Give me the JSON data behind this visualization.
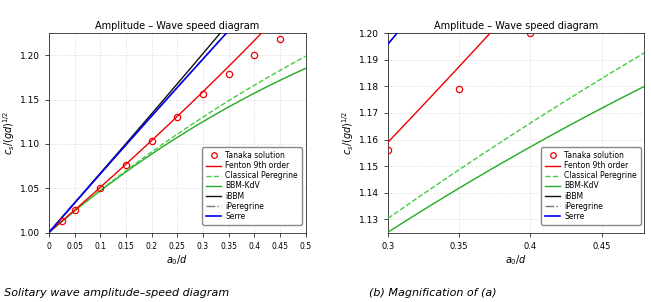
{
  "title": "Amplitude – Wave speed diagram",
  "subtitle_left": "(a) Solitary wave amplitude–speed diagram",
  "subtitle_right": "(b) Magnification of (a)",
  "xlim_left": [
    0.0,
    0.5
  ],
  "xlim_right": [
    0.3,
    0.48
  ],
  "ylim_left": [
    1.0,
    1.225
  ],
  "ylim_right": [
    1.125,
    1.2
  ],
  "tanaka_x": [
    0.025,
    0.05,
    0.1,
    0.15,
    0.2,
    0.25,
    0.3,
    0.35,
    0.4,
    0.45
  ],
  "tanaka_y": [
    1.013,
    1.025,
    1.05,
    1.076,
    1.103,
    1.13,
    1.156,
    1.179,
    1.2,
    1.218
  ],
  "colors": {
    "tanaka": "#ee0000",
    "fenton": "#ee0000",
    "classical_peregrine": "#44cc44",
    "bbm_kdv": "#22aa22",
    "ibbm": "#111111",
    "iperegrine": "#777777",
    "serre": "#0000ee"
  },
  "legend_labels": [
    "Tanaka solution",
    "Fenton 9th order",
    "Classical Peregrine",
    "BBM-KdV",
    "iBBM",
    "iPeregrine",
    "Serre"
  ],
  "yticks_left": [
    1.0,
    1.05,
    1.1,
    1.15,
    1.2
  ],
  "yticks_right": [
    1.13,
    1.14,
    1.15,
    1.16,
    1.17,
    1.18,
    1.19
  ],
  "xticks_right": [
    0.3,
    0.35,
    0.4,
    0.45
  ]
}
